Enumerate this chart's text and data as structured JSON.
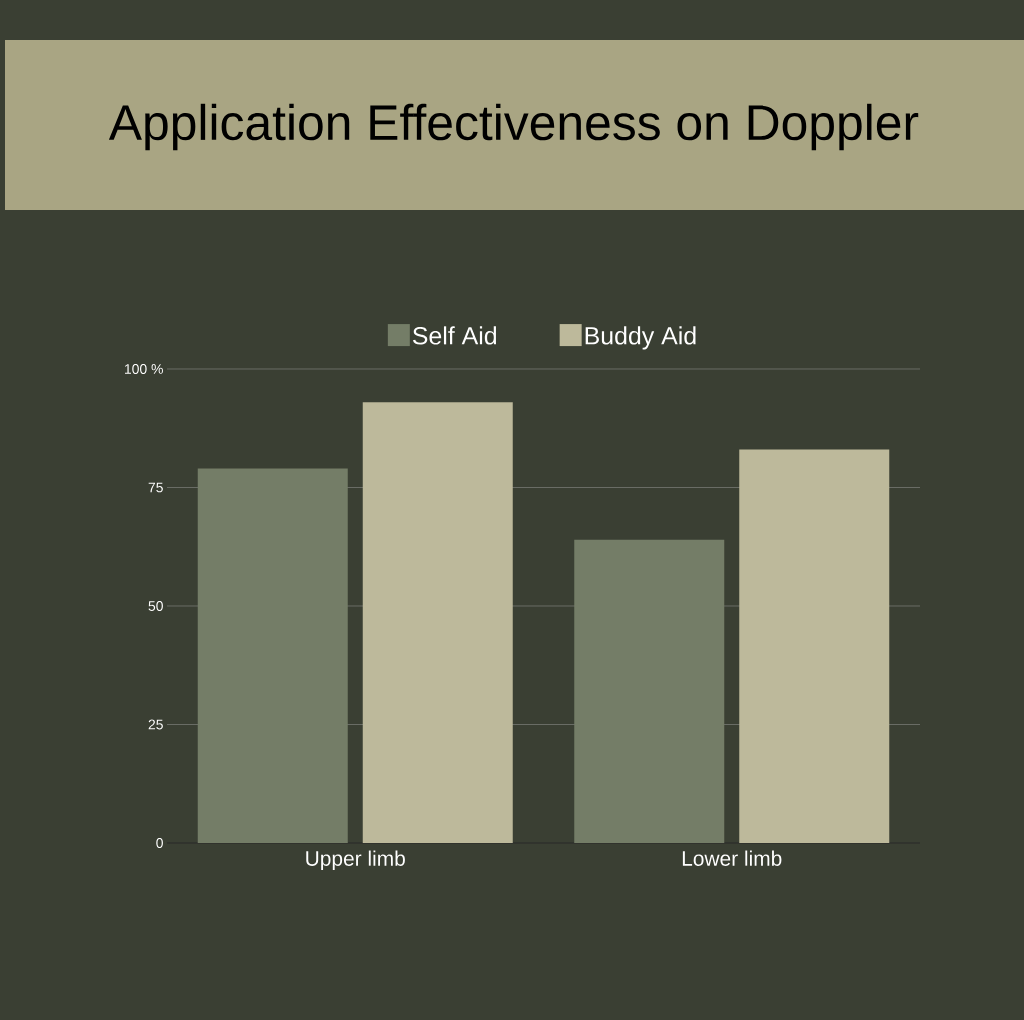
{
  "chart_data": {
    "type": "bar",
    "title": "Application Effectiveness on Doppler",
    "categories": [
      "Upper limb",
      "Lower limb"
    ],
    "series": [
      {
        "name": "Self Aid",
        "color": "#747d67",
        "values": [
          79,
          64
        ]
      },
      {
        "name": "Buddy Aid",
        "color": "#bdb99b",
        "values": [
          93,
          83
        ]
      }
    ],
    "ylim": [
      0,
      100
    ],
    "yticks": [
      0,
      25,
      50,
      75,
      {
        "value": 100,
        "label": "100 %"
      }
    ],
    "grid": "y",
    "legend": "top"
  }
}
